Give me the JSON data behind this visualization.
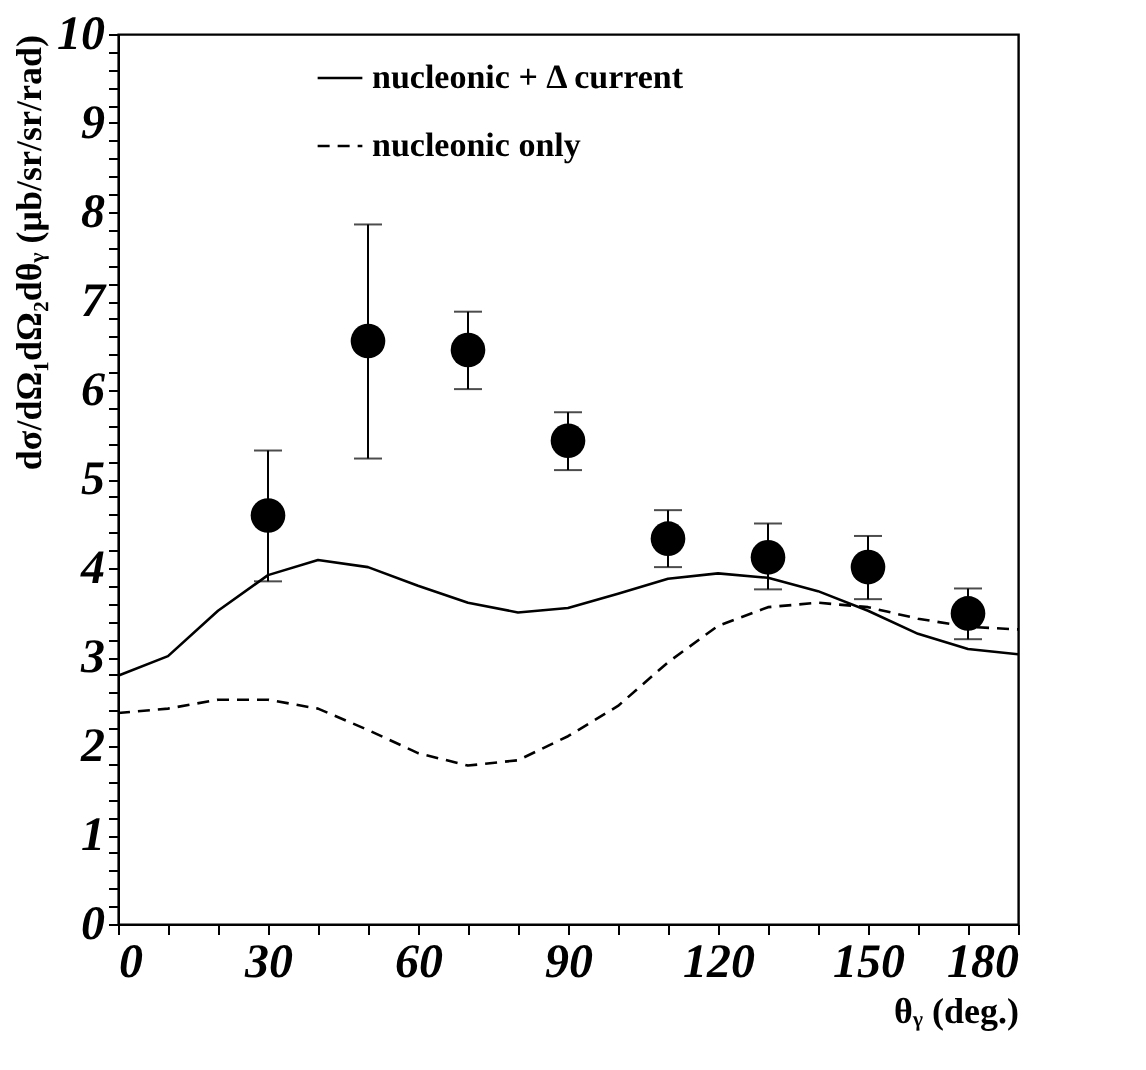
{
  "chart_data": {
    "type": "line",
    "xlabel": "θᵧ (deg.)",
    "ylabel": "dσ/dΩ₁dΩ₂dθᵧ (μb/sr/sr/rad)",
    "xlim": [
      0,
      180
    ],
    "ylim": [
      0,
      10
    ],
    "xticks": [
      0,
      {
        "value": 10,
        "label": null
      },
      {
        "value": 20,
        "label": null
      },
      30,
      {
        "value": 40,
        "label": null
      },
      {
        "value": 50,
        "label": null
      },
      60,
      {
        "value": 70,
        "label": null
      },
      {
        "value": 80,
        "label": null
      },
      90,
      {
        "value": 100,
        "label": null
      },
      {
        "value": 110,
        "label": null
      },
      120,
      {
        "value": 130,
        "label": null
      },
      {
        "value": 140,
        "label": null
      },
      150,
      {
        "value": 160,
        "label": null
      },
      {
        "value": 170,
        "label": null
      },
      180
    ],
    "yticks": [
      0,
      {
        "value": 0.2,
        "label": null
      },
      {
        "value": 0.4,
        "label": null
      },
      {
        "value": 0.6,
        "label": null
      },
      {
        "value": 0.8,
        "label": null
      },
      1,
      {
        "value": 1.2,
        "label": null
      },
      {
        "value": 1.4,
        "label": null
      },
      {
        "value": 1.6,
        "label": null
      },
      {
        "value": 1.8,
        "label": null
      },
      2,
      {
        "value": 2.2,
        "label": null
      },
      {
        "value": 2.4,
        "label": null
      },
      {
        "value": 2.6,
        "label": null
      },
      {
        "value": 2.8,
        "label": null
      },
      3,
      {
        "value": 3.2,
        "label": null
      },
      {
        "value": 3.4,
        "label": null
      },
      {
        "value": 3.6,
        "label": null
      },
      {
        "value": 3.8,
        "label": null
      },
      4,
      {
        "value": 4.2,
        "label": null
      },
      {
        "value": 4.4,
        "label": null
      },
      {
        "value": 4.6,
        "label": null
      },
      {
        "value": 4.8,
        "label": null
      },
      5,
      {
        "value": 5.2,
        "label": null
      },
      {
        "value": 5.4,
        "label": null
      },
      {
        "value": 5.6,
        "label": null
      },
      {
        "value": 5.8,
        "label": null
      },
      6,
      {
        "value": 6.2,
        "label": null
      },
      {
        "value": 6.4,
        "label": null
      },
      {
        "value": 6.6,
        "label": null
      },
      {
        "value": 6.8,
        "label": null
      },
      7,
      {
        "value": 7.2,
        "label": null
      },
      {
        "value": 7.4,
        "label": null
      },
      {
        "value": 7.6,
        "label": null
      },
      {
        "value": 7.8,
        "label": null
      },
      8,
      {
        "value": 8.2,
        "label": null
      },
      {
        "value": 8.4,
        "label": null
      },
      {
        "value": 8.6,
        "label": null
      },
      {
        "value": 8.8,
        "label": null
      },
      9,
      {
        "value": 9.2,
        "label": null
      },
      {
        "value": 9.4,
        "label": null
      },
      {
        "value": 9.6,
        "label": null
      },
      {
        "value": 9.8,
        "label": null
      },
      10
    ],
    "grid": false,
    "legend": "top",
    "series": [
      {
        "name": "nucleonic + Δ current",
        "color": "#000000",
        "type": "line",
        "line_style": "solid",
        "x": [
          0,
          10,
          20,
          30,
          40,
          50,
          60,
          70,
          80,
          90,
          100,
          110,
          120,
          130,
          140,
          150,
          160,
          170,
          180
        ],
        "values": [
          2.79,
          3.01,
          3.52,
          3.92,
          4.09,
          4.01,
          3.8,
          3.61,
          3.5,
          3.55,
          3.71,
          3.88,
          3.94,
          3.89,
          3.74,
          3.52,
          3.26,
          3.09,
          3.03
        ]
      },
      {
        "name": "nucleonic only",
        "color": "#000000",
        "type": "line",
        "line_style": "dashed",
        "x": [
          0,
          10,
          20,
          30,
          40,
          50,
          60,
          70,
          80,
          90,
          100,
          110,
          120,
          130,
          140,
          150,
          160,
          170,
          180
        ],
        "values": [
          2.37,
          2.42,
          2.52,
          2.52,
          2.42,
          2.18,
          1.92,
          1.78,
          1.84,
          2.11,
          2.45,
          2.94,
          3.35,
          3.56,
          3.61,
          3.56,
          3.43,
          3.34,
          3.31
        ]
      },
      {
        "color": "#000000",
        "type": "scatter",
        "marker": "circle",
        "x": [
          30,
          50,
          70,
          90,
          110,
          130,
          150,
          170
        ],
        "values": [
          4.59,
          6.55,
          6.45,
          5.43,
          4.33,
          4.12,
          4.01,
          3.49
        ],
        "errors": [
          [
            3.85,
            5.32
          ],
          [
            5.23,
            7.86
          ],
          [
            6.01,
            6.88
          ],
          [
            5.1,
            5.75
          ],
          [
            4.01,
            4.65
          ],
          [
            3.76,
            4.5
          ],
          [
            3.65,
            4.36
          ],
          [
            3.2,
            3.77
          ]
        ]
      }
    ]
  }
}
